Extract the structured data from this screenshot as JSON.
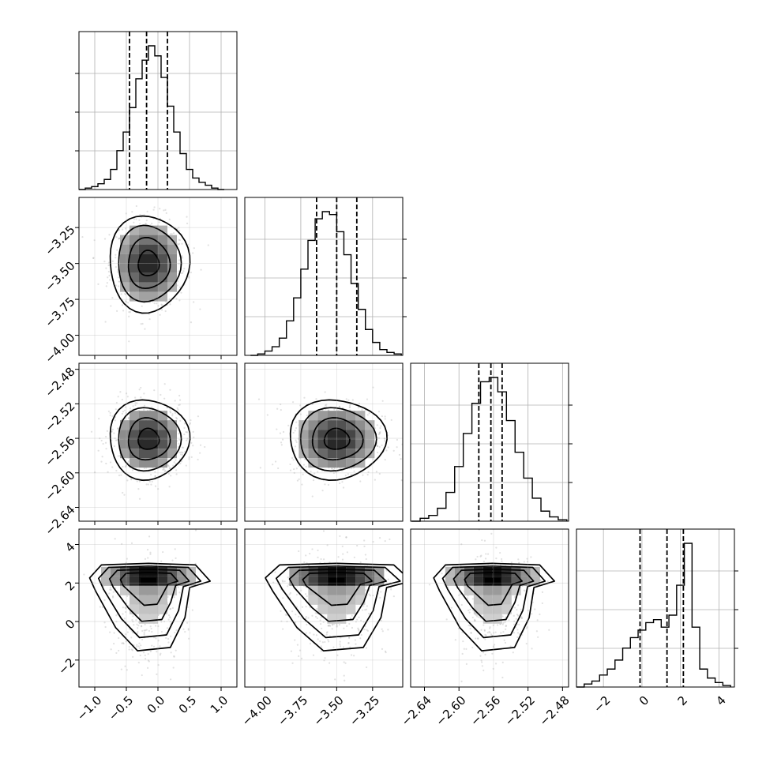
{
  "chart_data": {
    "type": "corner",
    "grid": true,
    "parameters": [
      {
        "id": "p0",
        "range": [
          -1.25,
          1.25
        ],
        "ticks": [
          -1.0,
          -0.5,
          0.0,
          0.5,
          1.0
        ],
        "tick_labels": [
          "−1.0",
          "−0.5",
          "0.0",
          "0.5",
          "1.0"
        ],
        "quantiles": [
          -0.45,
          -0.18,
          0.15
        ],
        "mode": [
          -0.15,
          2.1
        ]
      },
      {
        "id": "p1",
        "range": [
          -4.14,
          -3.04
        ],
        "ticks": [
          -4.0,
          -3.75,
          -3.5,
          -3.25
        ],
        "tick_labels": [
          "−4.00",
          "−3.75",
          "−3.50",
          "−3.25"
        ],
        "quantiles": [
          -3.64,
          -3.5,
          -3.36
        ]
      },
      {
        "id": "p2",
        "range": [
          -2.656,
          -2.473
        ],
        "ticks": [
          -2.64,
          -2.6,
          -2.56,
          -2.52,
          -2.48
        ],
        "tick_labels": [
          "−2.64",
          "−2.60",
          "−2.56",
          "−2.52",
          "−2.48"
        ],
        "quantiles": [
          -2.577,
          -2.563,
          -2.55
        ]
      },
      {
        "id": "p3",
        "range": [
          -3.4,
          4.8
        ],
        "ticks": [
          -2,
          0,
          2,
          4
        ],
        "tick_labels": [
          "−2",
          "0",
          "2",
          "4"
        ],
        "quantiles": [
          -0.1,
          1.3,
          2.15
        ]
      }
    ],
    "histograms": [
      {
        "param": "p0",
        "bin_edges": [
          -1.25,
          -1.15,
          -1.05,
          -0.95,
          -0.85,
          -0.75,
          -0.65,
          -0.55,
          -0.45,
          -0.35,
          -0.25,
          -0.15,
          -0.05,
          0.05,
          0.15,
          0.25,
          0.35,
          0.45,
          0.55,
          0.65,
          0.75,
          0.85,
          0.95,
          1.05
        ],
        "counts": [
          0,
          1,
          2,
          4,
          7,
          14,
          27,
          40,
          57,
          77,
          90,
          100,
          93,
          78,
          58,
          40,
          25,
          14,
          8,
          5,
          3,
          1,
          0
        ]
      },
      {
        "param": "p1",
        "bin_edges": [
          -4.1,
          -4.05,
          -4.0,
          -3.95,
          -3.9,
          -3.85,
          -3.8,
          -3.75,
          -3.7,
          -3.65,
          -3.6,
          -3.55,
          -3.5,
          -3.45,
          -3.4,
          -3.35,
          -3.3,
          -3.25,
          -3.2,
          -3.15,
          -3.1,
          -3.05
        ],
        "counts": [
          0,
          1,
          3,
          6,
          12,
          24,
          40,
          60,
          80,
          95,
          100,
          98,
          86,
          70,
          50,
          32,
          18,
          9,
          4,
          2,
          1
        ]
      },
      {
        "param": "p2",
        "bin_edges": [
          -2.655,
          -2.645,
          -2.635,
          -2.625,
          -2.615,
          -2.605,
          -2.595,
          -2.585,
          -2.575,
          -2.565,
          -2.555,
          -2.545,
          -2.535,
          -2.525,
          -2.515,
          -2.505,
          -2.495,
          -2.485,
          -2.475
        ],
        "counts": [
          0,
          2,
          4,
          9,
          20,
          38,
          61,
          82,
          97,
          100,
          90,
          70,
          48,
          30,
          16,
          7,
          3,
          1
        ]
      },
      {
        "param": "p3",
        "bin_edges": [
          -3.4,
          -3.0,
          -2.6,
          -2.2,
          -1.8,
          -1.4,
          -1.0,
          -0.6,
          -0.2,
          0.2,
          0.6,
          1.0,
          1.4,
          1.8,
          2.2,
          2.6,
          3.0,
          3.4,
          3.8,
          4.2,
          4.6
        ],
        "counts": [
          0,
          2,
          4,
          8,
          12,
          18,
          26,
          33,
          38,
          43,
          45,
          40,
          48,
          68,
          96,
          40,
          12,
          6,
          3,
          1
        ]
      }
    ],
    "pairs": [
      {
        "x": "p0",
        "y": "p1",
        "center": [
          -0.15,
          -3.5
        ],
        "sd": [
          0.3,
          0.16
        ],
        "contours": [
          0.55,
          1.1,
          1.65,
          2.1
        ]
      },
      {
        "x": "p0",
        "y": "p2",
        "center": [
          -0.15,
          -2.561
        ],
        "sd": [
          0.3,
          0.022
        ],
        "contours": [
          0.55,
          1.1,
          1.65,
          2.1
        ]
      },
      {
        "x": "p1",
        "y": "p2",
        "center": [
          -3.5,
          -2.561
        ],
        "sd": [
          0.16,
          0.022
        ],
        "contours": [
          0.55,
          1.1,
          1.65,
          2.1
        ]
      },
      {
        "x": "p0",
        "y": "p3",
        "center": [
          -0.15,
          1.3
        ],
        "sd": [
          0.3,
          1.5
        ],
        "mode_y": 2.1,
        "contours": [
          0.55,
          1.1,
          1.65,
          2.1
        ]
      },
      {
        "x": "p1",
        "y": "p3",
        "center": [
          -3.5,
          1.3
        ],
        "sd": [
          0.16,
          1.5
        ],
        "mode_y": 2.1,
        "contours": [
          0.55,
          1.1,
          1.65,
          2.1
        ]
      },
      {
        "x": "p2",
        "y": "p3",
        "center": [
          -2.561,
          1.3
        ],
        "sd": [
          0.022,
          1.5
        ],
        "mode_y": 2.1,
        "contours": [
          0.55,
          1.1,
          1.65,
          2.1
        ]
      }
    ],
    "colors": {
      "line": "#000000",
      "grid": "#b0b0b0",
      "scatter": "#9a9a9a",
      "background": "#ffffff"
    }
  }
}
